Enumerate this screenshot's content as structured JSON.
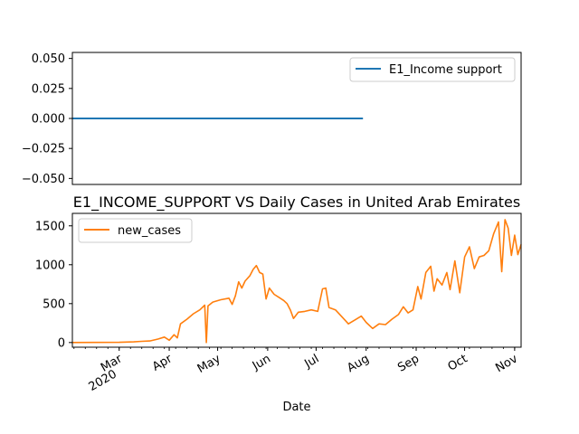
{
  "chart_data": [
    {
      "type": "line",
      "title": "",
      "xlabel": "",
      "ylabel": "",
      "ylim": [
        -0.055,
        0.055
      ],
      "yticks": [
        0.05,
        0.025,
        0.0,
        -0.025,
        -0.05
      ],
      "ytick_labels": [
        "0.050",
        "0.025",
        "0.000",
        "−0.025",
        "−0.050"
      ],
      "series": [
        {
          "name": "E1_Income support",
          "color": "#1f77b4",
          "x": [
            "2020-02-01",
            "2020-07-30",
            "2020-07-31",
            "2020-11-05"
          ],
          "values": [
            0,
            0,
            null,
            0
          ]
        }
      ],
      "legend_position": "top-right"
    },
    {
      "type": "line",
      "title": "E1_INCOME_SUPPORT VS Daily Cases in United Arab Emirates",
      "xlabel": "Date",
      "ylabel": "",
      "ylim": [
        -60,
        1660
      ],
      "yticks": [
        0,
        500,
        1000,
        1500
      ],
      "ytick_labels": [
        "0",
        "500",
        "1000",
        "1500"
      ],
      "xlim": [
        "2020-02-01",
        "2020-11-05"
      ],
      "xticks": [
        {
          "label": "Mar",
          "sub": "2020",
          "date": "2020-03-01"
        },
        {
          "label": "Apr",
          "sub": "",
          "date": "2020-04-01"
        },
        {
          "label": "May",
          "sub": "",
          "date": "2020-05-01"
        },
        {
          "label": "Jun",
          "sub": "",
          "date": "2020-06-01"
        },
        {
          "label": "Jul",
          "sub": "",
          "date": "2020-07-01"
        },
        {
          "label": "Aug",
          "sub": "",
          "date": "2020-08-01"
        },
        {
          "label": "Sep",
          "sub": "",
          "date": "2020-09-01"
        },
        {
          "label": "Oct",
          "sub": "",
          "date": "2020-10-01"
        },
        {
          "label": "Nov",
          "sub": "",
          "date": "2020-11-01"
        }
      ],
      "series": [
        {
          "name": "new_cases",
          "color": "#ff7f0e",
          "points": [
            [
              "2020-02-01",
              0
            ],
            [
              "2020-02-15",
              2
            ],
            [
              "2020-03-01",
              3
            ],
            [
              "2020-03-10",
              8
            ],
            [
              "2020-03-15",
              15
            ],
            [
              "2020-03-20",
              20
            ],
            [
              "2020-03-25",
              45
            ],
            [
              "2020-03-29",
              70
            ],
            [
              "2020-04-01",
              30
            ],
            [
              "2020-04-04",
              100
            ],
            [
              "2020-04-06",
              60
            ],
            [
              "2020-04-08",
              240
            ],
            [
              "2020-04-12",
              300
            ],
            [
              "2020-04-16",
              370
            ],
            [
              "2020-04-20",
              420
            ],
            [
              "2020-04-23",
              480
            ],
            [
              "2020-04-24",
              0
            ],
            [
              "2020-04-25",
              470
            ],
            [
              "2020-04-28",
              520
            ],
            [
              "2020-05-03",
              550
            ],
            [
              "2020-05-08",
              570
            ],
            [
              "2020-05-10",
              490
            ],
            [
              "2020-05-12",
              600
            ],
            [
              "2020-05-14",
              780
            ],
            [
              "2020-05-16",
              700
            ],
            [
              "2020-05-18",
              790
            ],
            [
              "2020-05-21",
              860
            ],
            [
              "2020-05-23",
              940
            ],
            [
              "2020-05-25",
              990
            ],
            [
              "2020-05-27",
              900
            ],
            [
              "2020-05-29",
              880
            ],
            [
              "2020-05-31",
              560
            ],
            [
              "2020-06-02",
              700
            ],
            [
              "2020-06-05",
              620
            ],
            [
              "2020-06-08",
              580
            ],
            [
              "2020-06-11",
              540
            ],
            [
              "2020-06-13",
              500
            ],
            [
              "2020-06-15",
              420
            ],
            [
              "2020-06-17",
              310
            ],
            [
              "2020-06-20",
              390
            ],
            [
              "2020-06-24",
              400
            ],
            [
              "2020-06-28",
              420
            ],
            [
              "2020-07-02",
              400
            ],
            [
              "2020-07-05",
              690
            ],
            [
              "2020-07-07",
              700
            ],
            [
              "2020-07-09",
              450
            ],
            [
              "2020-07-13",
              420
            ],
            [
              "2020-07-17",
              330
            ],
            [
              "2020-07-21",
              240
            ],
            [
              "2020-07-25",
              290
            ],
            [
              "2020-07-29",
              340
            ],
            [
              "2020-08-01",
              260
            ],
            [
              "2020-08-05",
              180
            ],
            [
              "2020-08-09",
              240
            ],
            [
              "2020-08-13",
              230
            ],
            [
              "2020-08-17",
              300
            ],
            [
              "2020-08-21",
              360
            ],
            [
              "2020-08-24",
              460
            ],
            [
              "2020-08-27",
              380
            ],
            [
              "2020-08-30",
              420
            ],
            [
              "2020-09-02",
              720
            ],
            [
              "2020-09-04",
              560
            ],
            [
              "2020-09-07",
              900
            ],
            [
              "2020-09-10",
              980
            ],
            [
              "2020-09-12",
              660
            ],
            [
              "2020-09-14",
              820
            ],
            [
              "2020-09-17",
              740
            ],
            [
              "2020-09-20",
              900
            ],
            [
              "2020-09-22",
              680
            ],
            [
              "2020-09-25",
              1050
            ],
            [
              "2020-09-28",
              640
            ],
            [
              "2020-10-01",
              1100
            ],
            [
              "2020-10-04",
              1230
            ],
            [
              "2020-10-07",
              950
            ],
            [
              "2020-10-10",
              1100
            ],
            [
              "2020-10-13",
              1120
            ],
            [
              "2020-10-16",
              1180
            ],
            [
              "2020-10-19",
              1400
            ],
            [
              "2020-10-22",
              1550
            ],
            [
              "2020-10-24",
              910
            ],
            [
              "2020-10-26",
              1580
            ],
            [
              "2020-10-28",
              1470
            ],
            [
              "2020-10-30",
              1120
            ],
            [
              "2020-11-01",
              1380
            ],
            [
              "2020-11-03",
              1130
            ],
            [
              "2020-11-05",
              1260
            ]
          ]
        }
      ],
      "legend_position": "top-left"
    }
  ]
}
